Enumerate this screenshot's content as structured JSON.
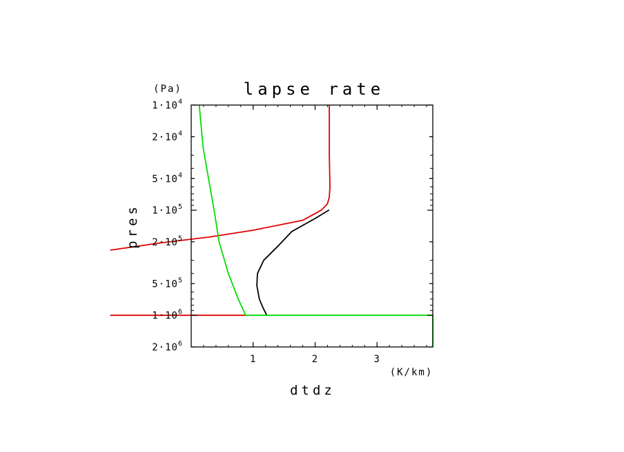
{
  "chart_data": {
    "type": "line",
    "title": "lapse rate",
    "xlabel": "dtdz",
    "xunit": "(K/km)",
    "ylabel": "pres",
    "yunit": "(Pa)",
    "xlim": [
      0,
      3.9
    ],
    "ylim": [
      10000,
      2000000
    ],
    "yscale": "log",
    "yinverted": true,
    "grid": false,
    "x_ticks": [
      {
        "value": 1,
        "label": "1"
      },
      {
        "value": 2,
        "label": "2"
      },
      {
        "value": 3,
        "label": "3"
      }
    ],
    "y_ticks": [
      {
        "value": 10000,
        "mant": "1",
        "exp": "4"
      },
      {
        "value": 20000,
        "mant": "2",
        "exp": "4"
      },
      {
        "value": 50000,
        "mant": "5",
        "exp": "4"
      },
      {
        "value": 100000,
        "mant": "1",
        "exp": "5"
      },
      {
        "value": 200000,
        "mant": "2",
        "exp": "5"
      },
      {
        "value": 500000,
        "mant": "5",
        "exp": "5"
      },
      {
        "value": 1000000,
        "mant": "1",
        "exp": "6"
      },
      {
        "value": 2000000,
        "mant": "2",
        "exp": "6"
      }
    ],
    "y_tick_sep": "·10",
    "series": [
      {
        "color": "#000000",
        "points": [
          [
            2.22,
            100000
          ],
          [
            2.0,
            120000
          ],
          [
            1.62,
            160000
          ],
          [
            1.4,
            220000
          ],
          [
            1.17,
            300000
          ],
          [
            1.07,
            400000
          ],
          [
            1.06,
            520000
          ],
          [
            1.1,
            700000
          ],
          [
            1.16,
            850000
          ],
          [
            1.22,
            1000000
          ]
        ]
      },
      {
        "color": "#dd0000",
        "points": [
          [
            2.23,
            10000
          ],
          [
            2.23,
            30000
          ],
          [
            2.24,
            60000
          ],
          [
            2.23,
            75000
          ],
          [
            2.2,
            87000
          ],
          [
            2.1,
            100000
          ],
          [
            1.8,
            125000
          ],
          [
            1.0,
            155000
          ],
          [
            0.3,
            180000
          ],
          [
            -0.5,
            205000
          ],
          [
            -1.3,
            240000
          ]
        ]
      },
      {
        "color": "#dd0000",
        "points": [
          [
            -1.3,
            1000000
          ],
          [
            0.88,
            1000000
          ]
        ]
      },
      {
        "color": "#00dd00",
        "points": [
          [
            0.13,
            10000
          ],
          [
            0.19,
            25000
          ],
          [
            0.28,
            50000
          ],
          [
            0.37,
            100000
          ],
          [
            0.45,
            200000
          ],
          [
            0.6,
            400000
          ],
          [
            0.76,
            700000
          ],
          [
            0.88,
            1000000
          ],
          [
            3.9,
            1000000
          ],
          [
            3.9,
            2000000
          ]
        ]
      }
    ]
  }
}
